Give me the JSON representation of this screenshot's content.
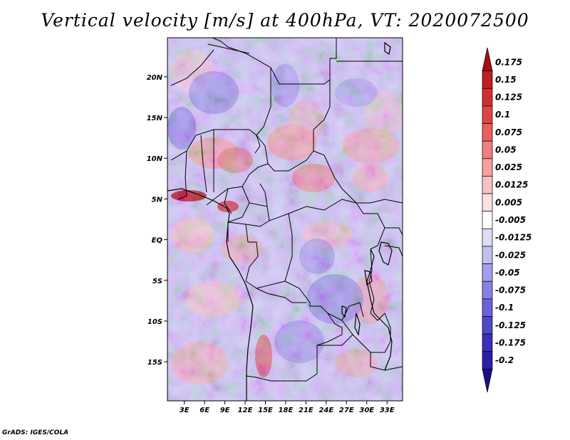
{
  "title": "Vertical velocity [m/s] at 400hPa, VT: 2020072500",
  "footer": "GrADS: IGES/COLA",
  "map": {
    "lat_labels": [
      "20N",
      "15N",
      "10N",
      "5N",
      "EQ",
      "5S",
      "10S",
      "15S"
    ],
    "lat_values": [
      20,
      15,
      10,
      5,
      0,
      -5,
      -10,
      -15
    ],
    "lon_labels": [
      "3E",
      "6E",
      "9E",
      "12E",
      "15E",
      "18E",
      "21E",
      "24E",
      "27E",
      "30E",
      "33E"
    ],
    "lon_values": [
      3,
      6,
      9,
      12,
      15,
      18,
      21,
      24,
      27,
      30,
      33
    ],
    "lat_range": [
      -19.8,
      24.8
    ],
    "lon_range": [
      0.5,
      35.3
    ]
  },
  "colorbar": {
    "labels": [
      "0.175",
      "0.15",
      "0.125",
      "0.1",
      "0.075",
      "0.05",
      "0.025",
      "0.0125",
      "0.005",
      "-0.005",
      "-0.0125",
      "-0.025",
      "-0.05",
      "-0.075",
      "-0.1",
      "-0.125",
      "-0.175",
      "-0.2"
    ],
    "colors": [
      "#a50f15",
      "#be1e24",
      "#d12f2f",
      "#de4646",
      "#e86060",
      "#ef8080",
      "#f4a0a0",
      "#f8c2c2",
      "#fce2e2",
      "#ffffff",
      "#dedcf7",
      "#c1bef2",
      "#a49fec",
      "#8780e3",
      "#6b62d8",
      "#5047c8",
      "#3a2fb5",
      "#2a1ea3",
      "#1a0e8a"
    ]
  }
}
